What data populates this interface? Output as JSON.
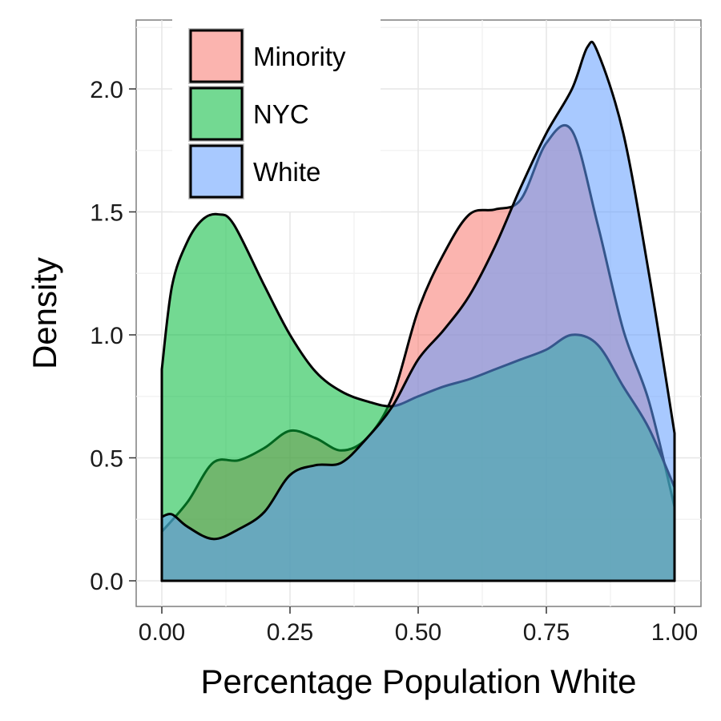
{
  "chart_data": {
    "type": "area",
    "xlabel": "Percentage Population White",
    "ylabel": "Density",
    "xlim": [
      0,
      1
    ],
    "ylim": [
      0,
      2.2
    ],
    "x_ticks": [
      "0.00",
      "0.25",
      "0.50",
      "0.75",
      "1.00"
    ],
    "y_ticks": [
      "0.0",
      "0.5",
      "1.0",
      "1.5",
      "2.0"
    ],
    "grid": true,
    "legend_position": "top-left",
    "series": [
      {
        "name": "Minority",
        "color": "#F8766D",
        "points": [
          [
            0.0,
            0.2
          ],
          [
            0.05,
            0.32
          ],
          [
            0.1,
            0.48
          ],
          [
            0.15,
            0.49
          ],
          [
            0.2,
            0.54
          ],
          [
            0.25,
            0.61
          ],
          [
            0.3,
            0.58
          ],
          [
            0.35,
            0.53
          ],
          [
            0.4,
            0.58
          ],
          [
            0.45,
            0.75
          ],
          [
            0.5,
            1.1
          ],
          [
            0.55,
            1.33
          ],
          [
            0.6,
            1.49
          ],
          [
            0.65,
            1.51
          ],
          [
            0.7,
            1.55
          ],
          [
            0.75,
            1.78
          ],
          [
            0.8,
            1.83
          ],
          [
            0.85,
            1.45
          ],
          [
            0.9,
            1.02
          ],
          [
            0.95,
            0.73
          ],
          [
            1.0,
            0.3
          ]
        ]
      },
      {
        "name": "NYC",
        "color": "#00BA38",
        "points": [
          [
            0.0,
            0.86
          ],
          [
            0.02,
            1.2
          ],
          [
            0.05,
            1.38
          ],
          [
            0.08,
            1.47
          ],
          [
            0.11,
            1.49
          ],
          [
            0.14,
            1.45
          ],
          [
            0.2,
            1.2
          ],
          [
            0.25,
            1.0
          ],
          [
            0.3,
            0.85
          ],
          [
            0.35,
            0.77
          ],
          [
            0.4,
            0.73
          ],
          [
            0.45,
            0.71
          ],
          [
            0.5,
            0.75
          ],
          [
            0.55,
            0.79
          ],
          [
            0.6,
            0.82
          ],
          [
            0.65,
            0.86
          ],
          [
            0.7,
            0.9
          ],
          [
            0.75,
            0.94
          ],
          [
            0.8,
            1.0
          ],
          [
            0.85,
            0.96
          ],
          [
            0.9,
            0.79
          ],
          [
            0.95,
            0.62
          ],
          [
            1.0,
            0.38
          ]
        ]
      },
      {
        "name": "White",
        "color": "#619CFF",
        "points": [
          [
            0.0,
            0.26
          ],
          [
            0.02,
            0.27
          ],
          [
            0.05,
            0.22
          ],
          [
            0.1,
            0.17
          ],
          [
            0.15,
            0.21
          ],
          [
            0.2,
            0.28
          ],
          [
            0.25,
            0.43
          ],
          [
            0.3,
            0.47
          ],
          [
            0.35,
            0.48
          ],
          [
            0.4,
            0.58
          ],
          [
            0.45,
            0.71
          ],
          [
            0.5,
            0.9
          ],
          [
            0.55,
            1.02
          ],
          [
            0.6,
            1.16
          ],
          [
            0.65,
            1.36
          ],
          [
            0.7,
            1.6
          ],
          [
            0.75,
            1.82
          ],
          [
            0.8,
            2.0
          ],
          [
            0.83,
            2.17
          ],
          [
            0.85,
            2.15
          ],
          [
            0.9,
            1.82
          ],
          [
            0.95,
            1.25
          ],
          [
            1.0,
            0.6
          ]
        ]
      }
    ]
  }
}
